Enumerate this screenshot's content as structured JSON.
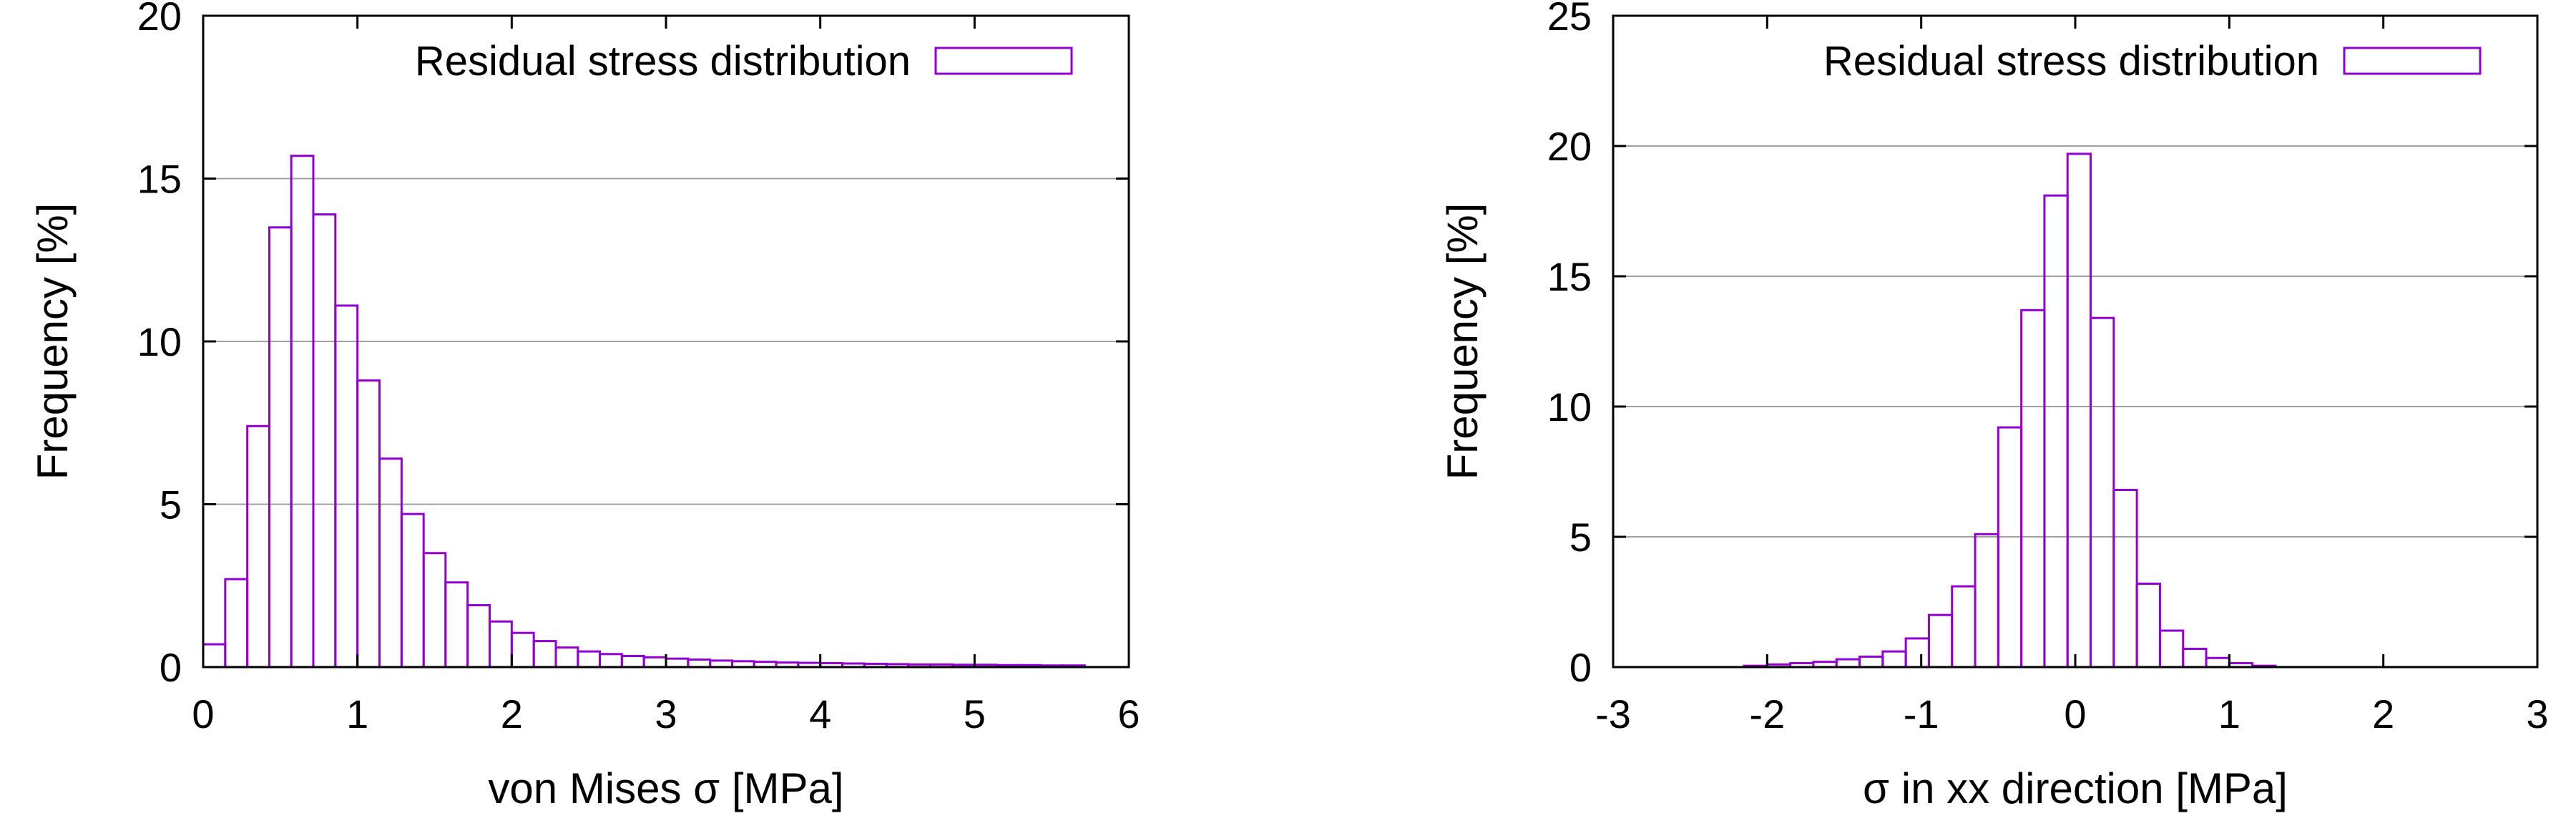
{
  "chart_data": [
    {
      "type": "bar",
      "xlabel": "von Mises σ [MPa]",
      "ylabel": "Frequency [%]",
      "xlim": [
        0,
        6
      ],
      "ylim": [
        0,
        20
      ],
      "xticks": [
        "0",
        "1",
        "2",
        "3",
        "4",
        "5",
        "6"
      ],
      "yticks": [
        "0",
        "5",
        "10",
        "15",
        "20"
      ],
      "grid": "horizontal",
      "legend_position": "top-right",
      "series": [
        {
          "name": "Residual stress distribution",
          "color": "#9400d3",
          "bin_edges": [
            0,
            0.143,
            0.286,
            0.429,
            0.571,
            0.714,
            0.857,
            1.0,
            1.143,
            1.286,
            1.429,
            1.571,
            1.714,
            1.857,
            2.0,
            2.143,
            2.286,
            2.429,
            2.571,
            2.714,
            2.857,
            3.0,
            3.143,
            3.286,
            3.429,
            3.571,
            3.714,
            3.857,
            4.0,
            4.143,
            4.286,
            4.429,
            4.571,
            4.714,
            4.857,
            5.0,
            5.143,
            5.286,
            5.429,
            5.571,
            5.714
          ],
          "values": [
            0.7,
            2.7,
            7.4,
            13.5,
            15.7,
            13.9,
            11.1,
            8.8,
            6.4,
            4.7,
            3.5,
            2.6,
            1.9,
            1.4,
            1.05,
            0.8,
            0.6,
            0.48,
            0.4,
            0.34,
            0.3,
            0.26,
            0.23,
            0.2,
            0.18,
            0.16,
            0.14,
            0.13,
            0.12,
            0.11,
            0.1,
            0.09,
            0.08,
            0.08,
            0.07,
            0.07,
            0.06,
            0.06,
            0.05,
            0.05
          ]
        }
      ]
    },
    {
      "type": "bar",
      "xlabel": "σ in xx direction [MPa]",
      "ylabel": "Frequency [%]",
      "xlim": [
        -3,
        3
      ],
      "ylim": [
        0,
        25
      ],
      "xticks": [
        "-3",
        "-2",
        "-1",
        "0",
        "1",
        "2",
        "3"
      ],
      "yticks": [
        "0",
        "5",
        "10",
        "15",
        "20",
        "25"
      ],
      "grid": "horizontal",
      "legend_position": "top-right",
      "series": [
        {
          "name": "Residual stress distribution",
          "color": "#9400d3",
          "bin_edges": [
            -2.15,
            -2.0,
            -1.85,
            -1.7,
            -1.55,
            -1.4,
            -1.25,
            -1.1,
            -0.95,
            -0.8,
            -0.65,
            -0.5,
            -0.35,
            -0.2,
            -0.05,
            0.1,
            0.25,
            0.4,
            0.55,
            0.7,
            0.85,
            1.0,
            1.15,
            1.3
          ],
          "values": [
            0.05,
            0.1,
            0.15,
            0.2,
            0.3,
            0.4,
            0.6,
            1.1,
            2.0,
            3.1,
            5.1,
            9.2,
            13.7,
            18.1,
            19.7,
            13.4,
            6.8,
            3.2,
            1.4,
            0.7,
            0.35,
            0.15,
            0.05
          ]
        }
      ]
    }
  ]
}
